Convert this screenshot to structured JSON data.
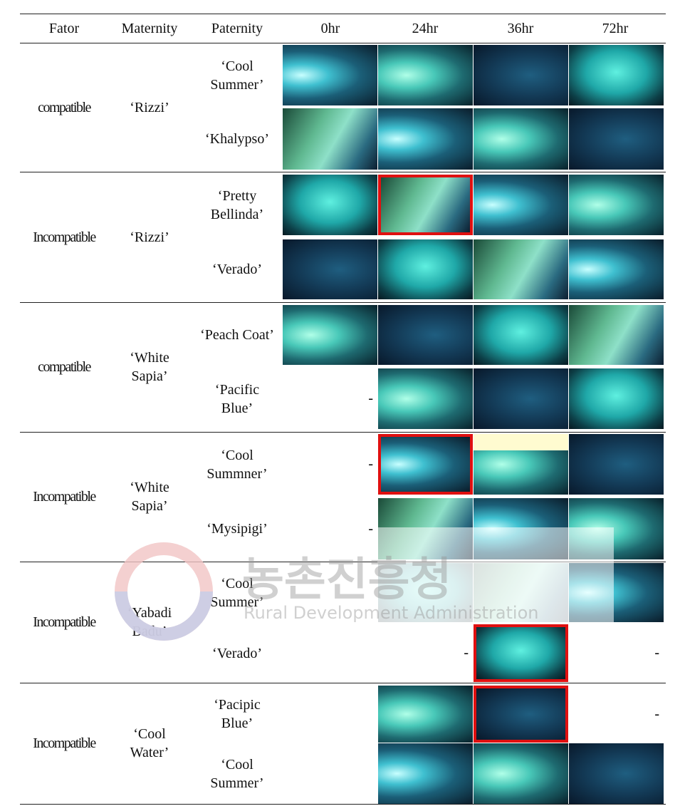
{
  "table": {
    "header": [
      "Fator",
      "Maternity",
      "Paternity",
      "0hr",
      "24hr",
      "36hr",
      "72hr"
    ],
    "groups": [
      {
        "fator": "compatible",
        "maternity": "‘Rizzi’",
        "rows": [
          {
            "paternity": "‘Cool Summer’",
            "cells": [
              null,
              null,
              null,
              null
            ]
          },
          {
            "paternity": "‘Khalypso’",
            "cells": [
              null,
              null,
              null,
              null
            ]
          }
        ]
      },
      {
        "fator": "Incompatible",
        "maternity": "‘Rizzi’",
        "rows": [
          {
            "paternity": "‘Pretty Bellinda’",
            "cells": [
              null,
              null,
              null,
              null
            ]
          },
          {
            "paternity": "‘Verado’",
            "cells": [
              null,
              null,
              null,
              null
            ]
          }
        ]
      },
      {
        "fator": "compatible",
        "maternity": "‘White Sapia’",
        "rows": [
          {
            "paternity": "‘Peach Coat’",
            "cells": [
              null,
              null,
              null,
              null
            ]
          },
          {
            "paternity": "‘Pacific Blue’",
            "cells": [
              "-",
              null,
              null,
              null
            ]
          }
        ]
      },
      {
        "fator": "Incompatible",
        "maternity": "‘White Sapia’",
        "rows": [
          {
            "paternity": "‘Cool Summner’",
            "cells": [
              "-",
              null,
              null,
              null
            ]
          },
          {
            "paternity": "‘Mysipigi’",
            "cells": [
              "-",
              null,
              null,
              null
            ]
          }
        ]
      },
      {
        "fator": "Incompatible",
        "maternity": "‘Yabadi Badu’",
        "rows": [
          {
            "paternity": "‘Cool Summer’",
            "cells": [
              null,
              null,
              null,
              null
            ]
          },
          {
            "paternity": "‘Verado’",
            "cells": [
              null,
              "-",
              null,
              "-"
            ]
          }
        ]
      },
      {
        "fator": "Incompatible",
        "maternity": "‘Cool Water’",
        "rows": [
          {
            "paternity": "‘Pacipic Blue’",
            "cells": [
              null,
              null,
              null,
              "-"
            ]
          },
          {
            "paternity": "‘Cool Summer’",
            "cells": [
              null,
              null,
              null,
              null
            ]
          }
        ]
      }
    ]
  },
  "watermark": {
    "korean": "농촌진흥청",
    "english": "Rural Development Administration"
  }
}
